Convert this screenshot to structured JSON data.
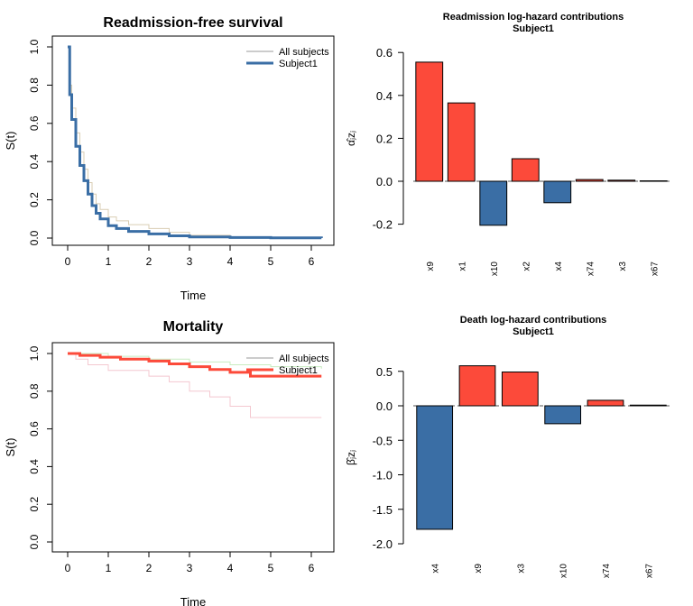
{
  "chart_data": [
    {
      "type": "line",
      "title": "Readmission-free survival",
      "xlabel": "Time",
      "ylabel": "S(t)",
      "xlim": [
        0,
        6.25
      ],
      "ylim": [
        0,
        1
      ],
      "xticks": [
        "0",
        "1",
        "2",
        "3",
        "4",
        "5",
        "6"
      ],
      "yticks": [
        "0.0",
        "0.2",
        "0.4",
        "0.6",
        "0.8",
        "1.0"
      ],
      "legend": "top-right",
      "series": [
        {
          "name": "All subjects",
          "color": "#d9cdb3",
          "width": 1,
          "step": true,
          "x": [
            0,
            0.05,
            0.1,
            0.2,
            0.3,
            0.4,
            0.5,
            0.6,
            0.7,
            0.8,
            1.0,
            1.2,
            1.5,
            2,
            2.5,
            3,
            4,
            5,
            6.25
          ],
          "y": [
            1,
            0.8,
            0.68,
            0.55,
            0.45,
            0.36,
            0.29,
            0.23,
            0.18,
            0.15,
            0.11,
            0.09,
            0.07,
            0.05,
            0.03,
            0.015,
            0.005,
            0.002,
            0
          ]
        },
        {
          "name": "Subject1",
          "color": "#3a6ea5",
          "width": 3,
          "step": true,
          "x": [
            0,
            0.05,
            0.1,
            0.2,
            0.3,
            0.4,
            0.5,
            0.6,
            0.7,
            0.8,
            1.0,
            1.2,
            1.5,
            2,
            2.5,
            3,
            4,
            5,
            6.25
          ],
          "y": [
            1,
            0.75,
            0.62,
            0.48,
            0.38,
            0.3,
            0.23,
            0.17,
            0.13,
            0.1,
            0.065,
            0.05,
            0.035,
            0.022,
            0.012,
            0.006,
            0.003,
            0.001,
            0
          ]
        }
      ]
    },
    {
      "type": "bar",
      "title": "Readmission log-hazard contributions",
      "subtitle": "Subject1",
      "ylabel": "α̂ⱼzⱼ",
      "ylim": [
        -0.25,
        0.6
      ],
      "yticks": [
        "-0.2",
        "0.0",
        "0.2",
        "0.4",
        "0.6"
      ],
      "ytick_values": [
        -0.2,
        0,
        0.2,
        0.4,
        0.6
      ],
      "categories": [
        "x9",
        "x1",
        "x10",
        "x2",
        "x4",
        "x74",
        "x3",
        "x67"
      ],
      "values": [
        0.555,
        0.365,
        -0.205,
        0.105,
        -0.1,
        0.008,
        0.005,
        0.002
      ],
      "pos_color": "#fc4a3a",
      "neg_color": "#3a6ea5"
    },
    {
      "type": "line",
      "title": "Mortality",
      "xlabel": "Time",
      "ylabel": "S(t)",
      "xlim": [
        0,
        6.25
      ],
      "ylim": [
        0,
        1
      ],
      "xticks": [
        "0",
        "1",
        "2",
        "3",
        "4",
        "5",
        "6"
      ],
      "yticks": [
        "0.0",
        "0.2",
        "0.4",
        "0.6",
        "0.8",
        "1.0"
      ],
      "legend": "top-right",
      "series": [
        {
          "color": "#c8ecc0",
          "width": 1,
          "step": true,
          "x": [
            0,
            1,
            2,
            3,
            4,
            5,
            6.25
          ],
          "y": [
            1,
            0.985,
            0.97,
            0.955,
            0.94,
            0.93,
            0.92
          ]
        },
        {
          "color": "#f4c8d0",
          "width": 1,
          "step": true,
          "x": [
            0,
            0.2,
            0.5,
            1,
            2,
            2.5,
            3,
            3.5,
            4,
            4.5,
            6.25
          ],
          "y": [
            1,
            0.97,
            0.94,
            0.91,
            0.88,
            0.85,
            0.8,
            0.77,
            0.72,
            0.66,
            0.66
          ]
        },
        {
          "name": "Subject1",
          "color": "#fc4a3a",
          "width": 3,
          "step": true,
          "x": [
            0,
            0.3,
            0.8,
            1.3,
            2,
            2.5,
            3,
            3.5,
            4,
            4.5,
            6.25
          ],
          "y": [
            1,
            0.99,
            0.98,
            0.97,
            0.96,
            0.945,
            0.93,
            0.915,
            0.9,
            0.88,
            0.88
          ]
        }
      ],
      "legend_entries": [
        {
          "name": "All subjects",
          "color": "#999999",
          "width": 1
        },
        {
          "name": "Subject1",
          "color": "#fc4a3a",
          "width": 3
        }
      ]
    },
    {
      "type": "bar",
      "title": "Death log-hazard contributions",
      "subtitle": "Subject1",
      "ylabel": "β̂ⱼzⱼ",
      "ylim": [
        -2.0,
        0.6
      ],
      "yticks": [
        "-2.0",
        "-1.5",
        "-1.0",
        "-0.5",
        "0.0",
        "0.5"
      ],
      "ytick_values": [
        -2,
        -1.5,
        -1,
        -0.5,
        0,
        0.5
      ],
      "categories": [
        "x4",
        "x9",
        "x3",
        "x10",
        "x74",
        "x67"
      ],
      "values": [
        -1.79,
        0.58,
        0.49,
        -0.26,
        0.08,
        0.01
      ],
      "pos_color": "#fc4a3a",
      "neg_color": "#3a6ea5"
    }
  ]
}
